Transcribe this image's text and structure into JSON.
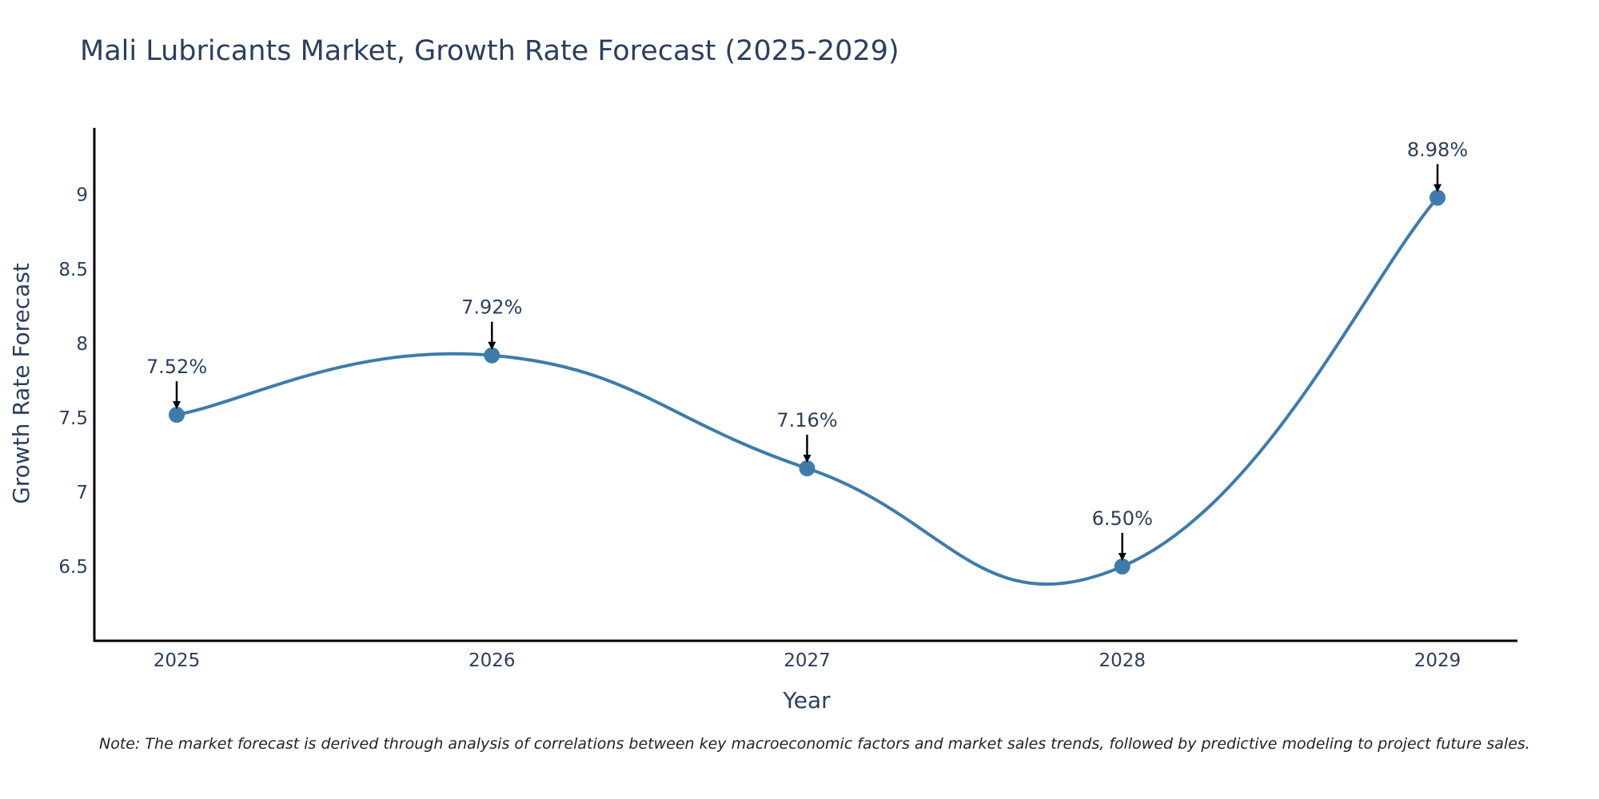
{
  "chart_data": {
    "type": "line",
    "title": "Mali Lubricants Market, Growth Rate Forecast (2025-2029)",
    "xlabel": "Year",
    "ylabel": "Growth Rate Forecast",
    "categories": [
      "2025",
      "2026",
      "2027",
      "2028",
      "2029"
    ],
    "values": [
      7.52,
      7.92,
      7.16,
      6.5,
      8.98
    ],
    "data_labels": [
      "7.52%",
      "7.92%",
      "7.16%",
      "6.50%",
      "8.98%"
    ],
    "y_ticks": [
      "6.5",
      "7",
      "7.5",
      "8",
      "8.5",
      "9"
    ],
    "ylim": [
      6.0,
      9.45
    ],
    "series_color": "#3d7caa",
    "annotation_arrow_color": "#000000",
    "grid": false,
    "legend": "none",
    "note": "Note: The market forecast is derived through analysis of correlations between key macroeconomic factors and market sales trends, followed by predictive modeling to project future sales."
  }
}
